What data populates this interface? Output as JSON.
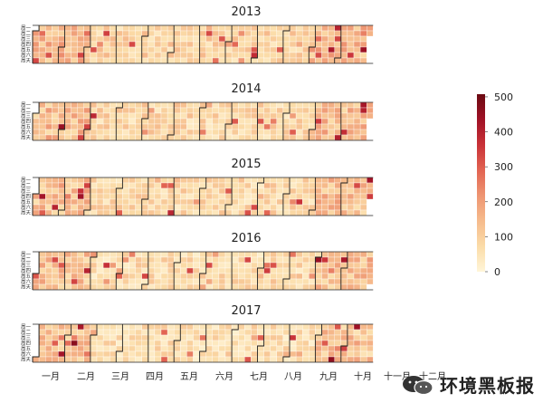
{
  "chart_data": {
    "type": "heatmap",
    "years": [
      "2013",
      "2014",
      "2015",
      "2016",
      "2017"
    ],
    "weekday_labels": [
      "周一",
      "周二",
      "周三",
      "周四",
      "周五",
      "周六",
      "周天"
    ],
    "month_labels": [
      "一月",
      "二月",
      "三月",
      "四月",
      "五月",
      "六月",
      "七月",
      "八月",
      "九月",
      "十月",
      "十一月",
      "十二月"
    ],
    "colorbar": {
      "min": 0,
      "max": 500,
      "ticks": [
        "0",
        "100",
        "200",
        "300",
        "400",
        "500"
      ],
      "palette": [
        "#fff5d8",
        "#fbdca8",
        "#f6bb8c",
        "#ee9572",
        "#e26452",
        "#c93238",
        "#a01226",
        "#6b0a12"
      ]
    }
  },
  "watermark": {
    "text": "环境黑板报"
  }
}
